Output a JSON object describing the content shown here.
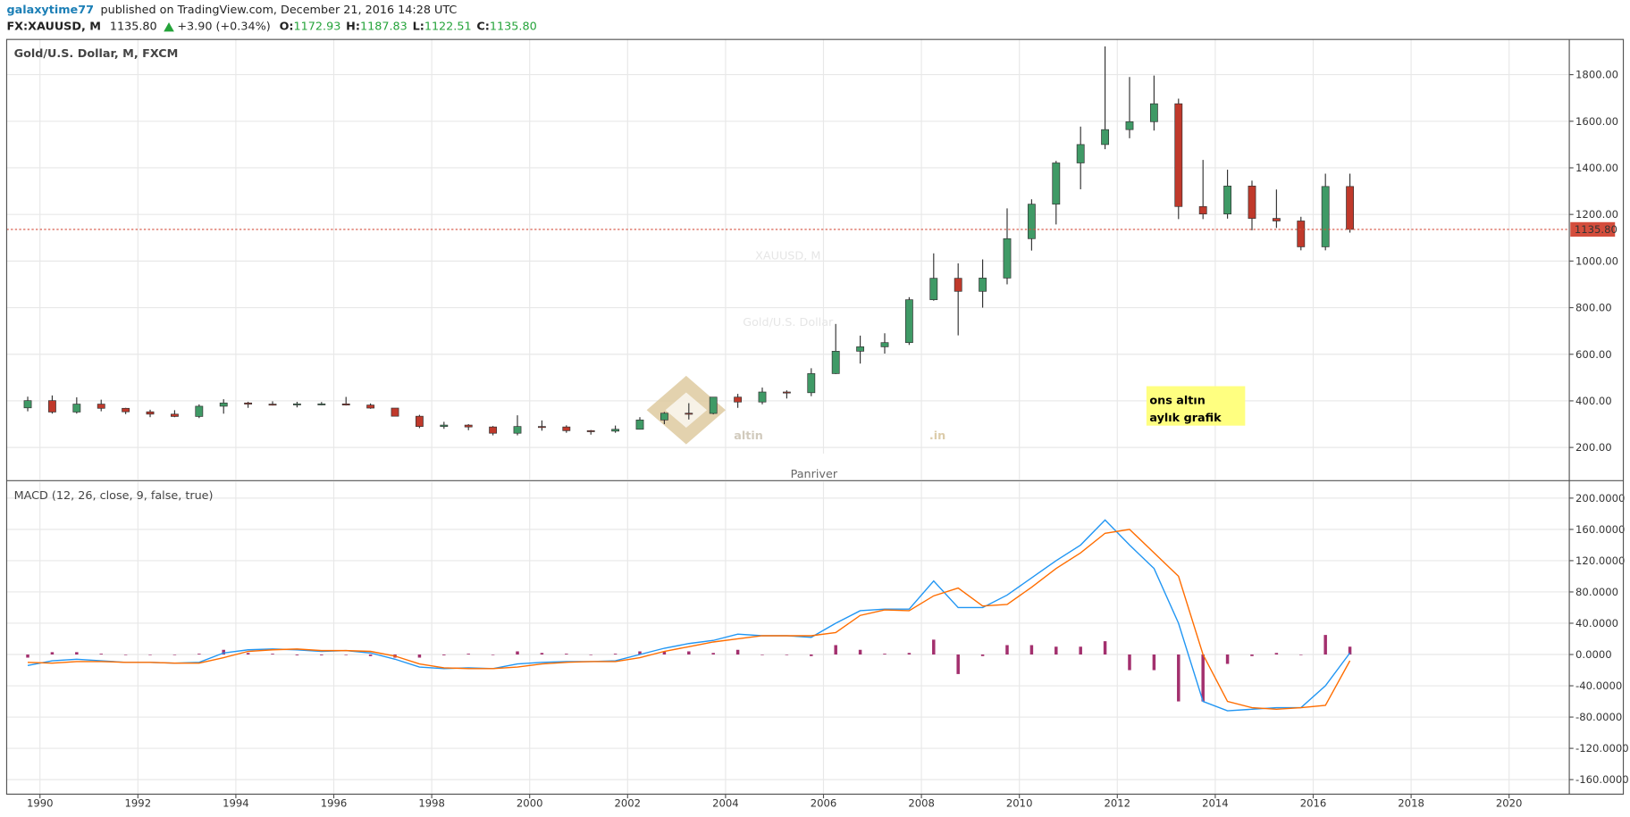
{
  "header": {
    "author": "galaxytime77",
    "published": "published on TradingView.com, December 21, 2016 14:28 UTC",
    "symbol": "FX:XAUUSD, M",
    "last": "1135.80",
    "change": "+3.90 (+0.34%)",
    "ohlc": [
      {
        "label": "O:",
        "value": "1172.93"
      },
      {
        "label": "H:",
        "value": "1187.83"
      },
      {
        "label": "L:",
        "value": "1122.51"
      },
      {
        "label": "C:",
        "value": "1135.80"
      }
    ]
  },
  "logo": {
    "brand": "altin",
    "domain": ".in",
    "author": "Panriver"
  },
  "chart_data": [
    {
      "type": "candlestick",
      "title": "Gold/U.S. Dollar, M, FXCM",
      "watermark": {
        "symbol": "XAUUSD, M",
        "name": "Gold/U.S. Dollar"
      },
      "annotation": [
        "ons altın",
        "aylık grafik"
      ],
      "up_color": "#3f9a66",
      "down_color": "#c0392b",
      "grid": true,
      "x": [
        1989.75,
        1990.25,
        1990.75,
        1991.25,
        1991.75,
        1992.25,
        1992.75,
        1993.25,
        1993.75,
        1994.25,
        1994.75,
        1995.25,
        1995.75,
        1996.25,
        1996.75,
        1997.25,
        1997.75,
        1998.25,
        1998.75,
        1999.25,
        1999.75,
        2000.25,
        2000.75,
        2001.25,
        2001.75,
        2002.25,
        2002.75,
        2003.25,
        2003.75,
        2004.25,
        2004.75,
        2005.25,
        2005.75,
        2006.25,
        2006.75,
        2007.25,
        2007.75,
        2008.25,
        2008.75,
        2009.25,
        2009.75,
        2010.25,
        2010.75,
        2011.25,
        2011.75,
        2012.25,
        2012.75,
        2013.25,
        2013.75,
        2014.25,
        2014.75,
        2015.25,
        2015.75,
        2016.25,
        2016.75
      ],
      "open": [
        370,
        401,
        352,
        386,
        368,
        353,
        343,
        333,
        377,
        391,
        386,
        383,
        387,
        387,
        382,
        369,
        334,
        290,
        296,
        288,
        261,
        290,
        288,
        272,
        270,
        278,
        318,
        347,
        346,
        416,
        395,
        438,
        435,
        517,
        613,
        632,
        650,
        834,
        926,
        870,
        927,
        1096,
        1244,
        1421,
        1500,
        1564,
        1598,
        1675,
        1234,
        1202,
        1322,
        1183,
        1172,
        1061,
        1320
      ],
      "high": [
        418,
        423,
        415,
        405,
        370,
        362,
        360,
        385,
        407,
        396,
        398,
        396,
        395,
        417,
        389,
        369,
        340,
        310,
        300,
        292,
        338,
        316,
        295,
        275,
        294,
        330,
        352,
        390,
        417,
        430,
        457,
        445,
        540,
        730,
        680,
        690,
        845,
        1033,
        990,
        1007,
        1226,
        1265,
        1430,
        1577,
        1921,
        1790,
        1796,
        1697,
        1434,
        1392,
        1345,
        1307,
        1190,
        1375,
        1375
      ],
      "low": [
        355,
        345,
        345,
        355,
        343,
        330,
        330,
        326,
        345,
        370,
        380,
        372,
        381,
        380,
        366,
        335,
        283,
        280,
        274,
        252,
        252,
        272,
        263,
        255,
        263,
        277,
        300,
        320,
        342,
        370,
        385,
        410,
        420,
        515,
        560,
        603,
        640,
        830,
        681,
        800,
        900,
        1045,
        1157,
        1308,
        1480,
        1527,
        1560,
        1180,
        1180,
        1182,
        1132,
        1142,
        1046,
        1046,
        1122
      ],
      "close": [
        401,
        352,
        386,
        368,
        353,
        343,
        333,
        377,
        391,
        386,
        383,
        387,
        387,
        382,
        369,
        334,
        290,
        296,
        288,
        261,
        290,
        288,
        272,
        270,
        278,
        318,
        347,
        346,
        416,
        395,
        438,
        435,
        517,
        613,
        632,
        650,
        834,
        926,
        870,
        927,
        1096,
        1244,
        1421,
        1500,
        1564,
        1598,
        1675,
        1234,
        1202,
        1322,
        1183,
        1172,
        1061,
        1320,
        1135.8
      ],
      "last_price": {
        "value": 1135.8,
        "label": "1135.80",
        "color": "#d44d3c"
      },
      "xlim": [
        1989.32,
        2021.23
      ],
      "xticks": [
        1990,
        1992,
        1994,
        1996,
        1998,
        2000,
        2002,
        2004,
        2006,
        2008,
        2010,
        2012,
        2014,
        2016,
        2018,
        2020
      ],
      "ylim": [
        62,
        1951
      ],
      "yticks": [
        {
          "value": 200,
          "label": "200.00"
        },
        {
          "value": 400,
          "label": "400.00"
        },
        {
          "value": 600,
          "label": "600.00"
        },
        {
          "value": 800,
          "label": "800.00"
        },
        {
          "value": 1000,
          "label": "1000.00"
        },
        {
          "value": 1200,
          "label": "1200.00"
        },
        {
          "value": 1400,
          "label": "1400.00"
        },
        {
          "value": 1600,
          "label": "1600.00"
        },
        {
          "value": 1800,
          "label": "1800.00"
        }
      ]
    },
    {
      "type": "macd",
      "title": "MACD (12, 26, close, 9, false, true)",
      "grid": true,
      "x": [
        1989.75,
        1990.25,
        1990.75,
        1991.25,
        1991.75,
        1992.25,
        1992.75,
        1993.25,
        1993.75,
        1994.25,
        1994.75,
        1995.25,
        1995.75,
        1996.25,
        1996.75,
        1997.25,
        1997.75,
        1998.25,
        1998.75,
        1999.25,
        1999.75,
        2000.25,
        2000.75,
        2001.25,
        2001.75,
        2002.25,
        2002.75,
        2003.25,
        2003.75,
        2004.25,
        2004.75,
        2005.25,
        2005.75,
        2006.25,
        2006.75,
        2007.25,
        2007.75,
        2008.25,
        2008.75,
        2009.25,
        2009.75,
        2010.25,
        2010.75,
        2011.25,
        2011.75,
        2012.25,
        2012.75,
        2013.25,
        2013.75,
        2014.25,
        2014.75,
        2015.25,
        2015.75,
        2016.25,
        2016.75
      ],
      "series": [
        {
          "style": "histogram",
          "color": "#a3306e",
          "values": [
            -4,
            3,
            3,
            1,
            0,
            0,
            0,
            1,
            6,
            2,
            1,
            -1,
            -1,
            0,
            -2,
            -4,
            -4,
            -1,
            1,
            0,
            4,
            2,
            1,
            0,
            1,
            4,
            4,
            4,
            2,
            6,
            0,
            0,
            -2,
            12,
            6,
            1,
            2,
            19,
            -25,
            -2,
            12,
            12,
            10,
            10,
            17,
            -20,
            -20,
            -60,
            -60,
            -12,
            -2,
            2,
            0,
            25,
            10
          ]
        },
        {
          "style": "line",
          "color": "#2196f3",
          "values": [
            -14,
            -8,
            -6,
            -8,
            -10,
            -10,
            -11,
            -10,
            2,
            6,
            7,
            6,
            4,
            5,
            2,
            -6,
            -16,
            -18,
            -17,
            -18,
            -12,
            -10,
            -9,
            -9,
            -8,
            0,
            8,
            14,
            18,
            26,
            24,
            24,
            22,
            40,
            56,
            58,
            58,
            94,
            60,
            60,
            76,
            98,
            120,
            140,
            172,
            140,
            110,
            40,
            -60,
            -72,
            -70,
            -68,
            -68,
            -40,
            2
          ]
        },
        {
          "style": "line",
          "color": "#ff6d00",
          "values": [
            -10,
            -11,
            -9,
            -9,
            -10,
            -10,
            -11,
            -11,
            -4,
            4,
            6,
            7,
            5,
            5,
            4,
            -2,
            -12,
            -17,
            -18,
            -18,
            -16,
            -12,
            -10,
            -9,
            -9,
            -4,
            4,
            10,
            16,
            20,
            24,
            24,
            24,
            28,
            50,
            57,
            56,
            75,
            85,
            62,
            64,
            86,
            110,
            130,
            155,
            160,
            130,
            100,
            0,
            -60,
            -68,
            -70,
            -68,
            -65,
            -8
          ]
        }
      ],
      "xlim": [
        1989.32,
        2021.23
      ],
      "xticks": [
        1990,
        1992,
        1994,
        1996,
        1998,
        2000,
        2002,
        2004,
        2006,
        2008,
        2010,
        2012,
        2014,
        2016,
        2018,
        2020
      ],
      "ylim": [
        -178.6,
        221
      ],
      "yticks": [
        {
          "value": -160,
          "label": "-160.0000"
        },
        {
          "value": -120,
          "label": "-120.0000"
        },
        {
          "value": -80,
          "label": "-80.0000"
        },
        {
          "value": -40,
          "label": "-40.0000"
        },
        {
          "value": 0,
          "label": "0.0000"
        },
        {
          "value": 40,
          "label": "40.0000"
        },
        {
          "value": 80,
          "label": "80.0000"
        },
        {
          "value": 120,
          "label": "120.0000"
        },
        {
          "value": 160,
          "label": "160.0000"
        },
        {
          "value": 200,
          "label": "200.0000"
        }
      ]
    }
  ]
}
